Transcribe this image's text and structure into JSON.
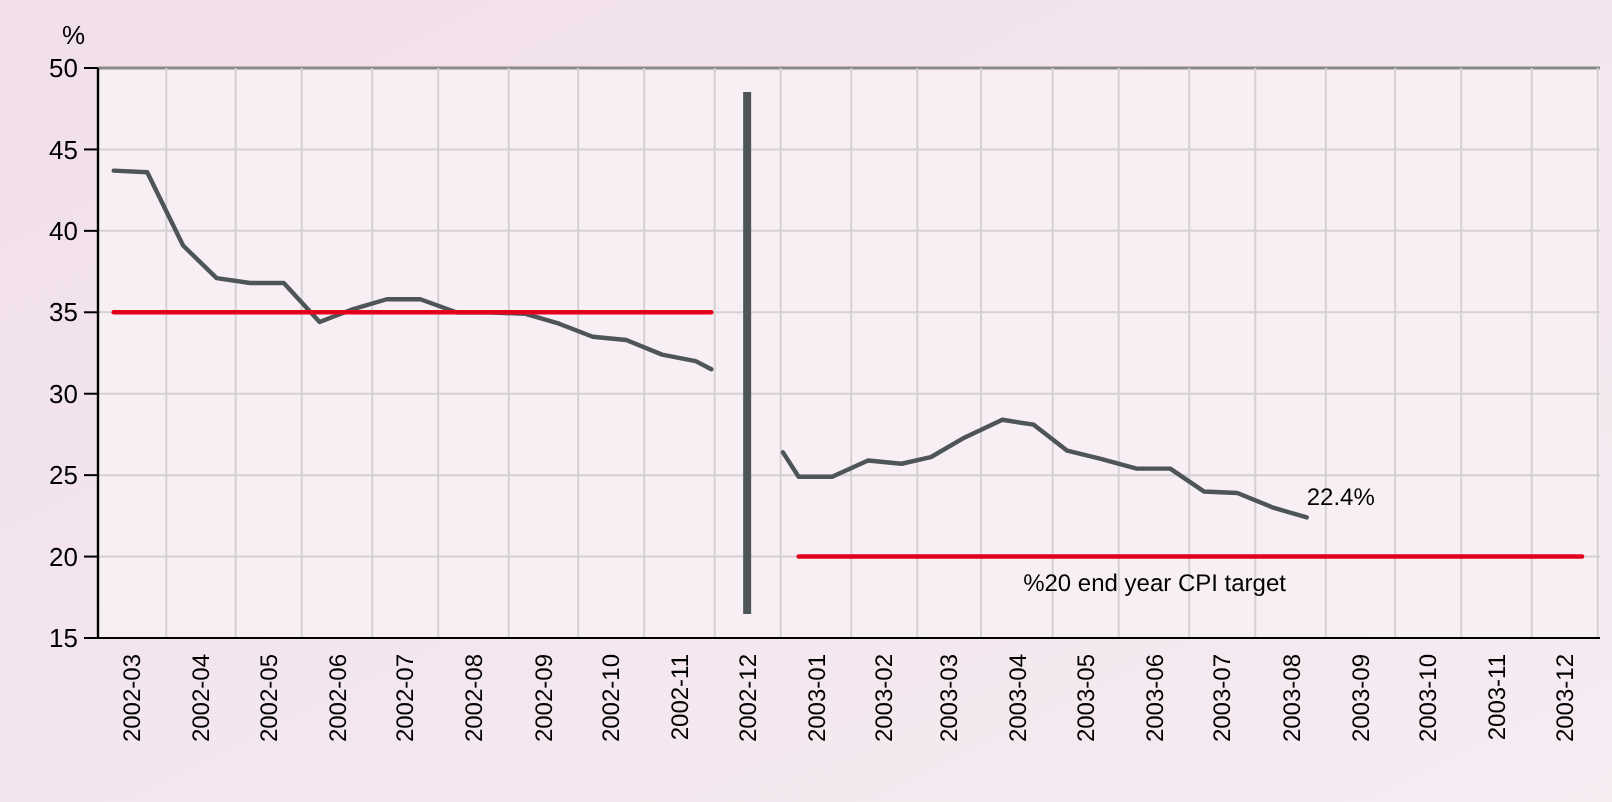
{
  "chart_data": {
    "type": "line",
    "ylabel": "%",
    "xlim": [
      "2002-03-01",
      "2004-01-01"
    ],
    "ylim": [
      15,
      50
    ],
    "yticks": [
      15,
      20,
      25,
      30,
      35,
      40,
      45,
      50
    ],
    "xticks": [
      {
        "value": "2002-03-16",
        "label": "2002-03"
      },
      {
        "value": "2002-04-16",
        "label": "2002-04"
      },
      {
        "value": "2002-05-16",
        "label": "2002-05"
      },
      {
        "value": "2002-06-16",
        "label": "2002-06"
      },
      {
        "value": "2002-07-16",
        "label": "2002-07"
      },
      {
        "value": "2002-08-16",
        "label": "2002-08"
      },
      {
        "value": "2002-09-16",
        "label": "2002-09"
      },
      {
        "value": "2002-10-16",
        "label": "2002-10"
      },
      {
        "value": "2002-11-16",
        "label": "2002-11"
      },
      {
        "value": "2002-12-16",
        "label": "2002-12"
      },
      {
        "value": "2003-01-16",
        "label": "2003-01"
      },
      {
        "value": "2003-02-15",
        "label": "2003-02"
      },
      {
        "value": "2003-03-16",
        "label": "2003-03"
      },
      {
        "value": "2003-04-16",
        "label": "2003-04"
      },
      {
        "value": "2003-05-16",
        "label": "2003-05"
      },
      {
        "value": "2003-06-16",
        "label": "2003-06"
      },
      {
        "value": "2003-07-16",
        "label": "2003-07"
      },
      {
        "value": "2003-08-16",
        "label": "2003-08"
      },
      {
        "value": "2003-09-16",
        "label": "2003-09"
      },
      {
        "value": "2003-10-16",
        "label": "2003-10"
      },
      {
        "value": "2003-11-16",
        "label": "2003-11"
      },
      {
        "value": "2003-12-16",
        "label": "2003-12"
      }
    ],
    "grid": true,
    "series": [
      {
        "color": "#4d5557",
        "x": [
          "2002-03-08",
          "2002-03-23",
          "2002-04-08",
          "2002-04-23",
          "2002-05-08",
          "2002-05-23",
          "2002-06-08",
          "2002-06-23",
          "2002-07-08",
          "2002-07-23",
          "2002-08-08",
          "2002-08-23",
          "2002-09-08",
          "2002-09-23",
          "2002-10-08",
          "2002-10-23",
          "2002-11-08",
          "2002-11-23",
          "2002-11-30"
        ],
        "values": [
          43.7,
          43.6,
          39.1,
          37.1,
          36.8,
          36.8,
          34.4,
          35.2,
          35.8,
          35.8,
          35.0,
          35.0,
          34.9,
          34.3,
          33.5,
          33.3,
          32.4,
          32.0,
          31.5
        ]
      },
      {
        "color": "#4d5557",
        "x": [
          "2003-01-01",
          "2003-01-08",
          "2003-01-23",
          "2003-02-08",
          "2003-02-23",
          "2003-03-08",
          "2003-03-23",
          "2003-04-09",
          "2003-04-23",
          "2003-05-08",
          "2003-05-23",
          "2003-06-08",
          "2003-06-23",
          "2003-07-08",
          "2003-07-23",
          "2003-08-08",
          "2003-08-23"
        ],
        "values": [
          26.4,
          24.9,
          24.9,
          25.9,
          25.7,
          26.1,
          27.3,
          28.4,
          28.1,
          26.5,
          26.0,
          25.4,
          25.4,
          24.0,
          23.9,
          23.0,
          22.4
        ]
      },
      {
        "color": "#e3001b",
        "x": [
          "2002-03-08",
          "2002-11-30"
        ],
        "values": [
          35,
          35
        ]
      },
      {
        "color": "#e3001b",
        "x": [
          "2003-01-08",
          "2003-12-24"
        ],
        "values": [
          20,
          20
        ]
      }
    ],
    "ref_lines": [
      {
        "axis": "x",
        "value": "2002-12-16",
        "color": "#4d5557"
      }
    ],
    "annotations": [
      {
        "text": "22.4%",
        "x": "2003-08-23",
        "y": 22.4
      },
      {
        "text": "%20 end year CPI target",
        "x": "2003-06-16",
        "y": 20
      }
    ]
  }
}
